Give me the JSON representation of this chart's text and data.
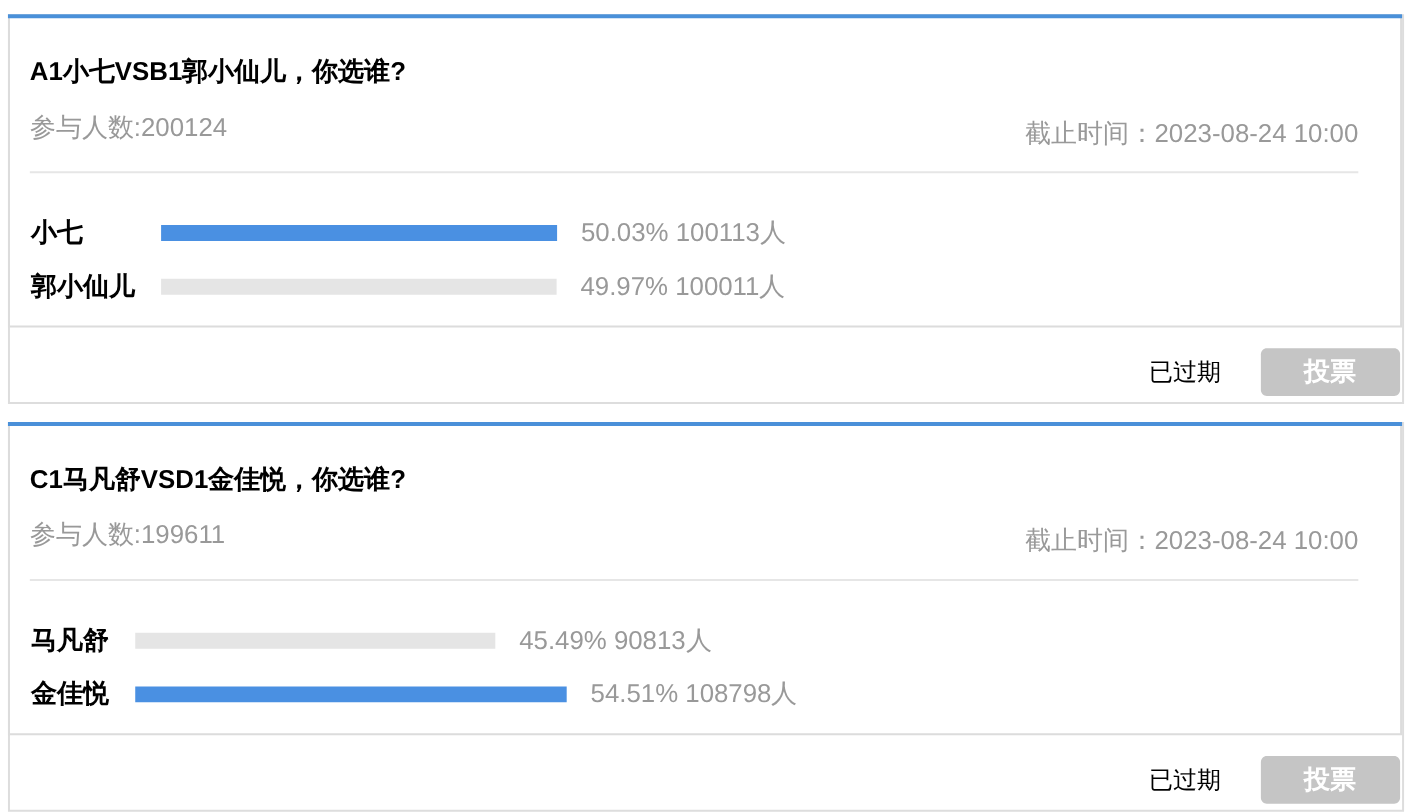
{
  "chart_data": [
    {
      "type": "bar",
      "orientation": "horizontal",
      "title": "A1小七VSB1郭小仙儿，你选谁?",
      "subtitle": "参与人数:200124",
      "categories": [
        "小七",
        "郭小仙儿"
      ],
      "values": [
        50.03,
        49.97
      ],
      "colors": [
        "#4a90e2",
        "#e5e5e5"
      ],
      "value_labels": [
        "50.03% 100113人",
        "49.97% 100011人"
      ],
      "tick_labels": "y",
      "annotations": [
        "截止时间：2023-08-24 10:00",
        "已过期",
        "投票"
      ]
    },
    {
      "type": "bar",
      "orientation": "horizontal",
      "title": "C1马凡舒VSD1金佳悦，你选谁?",
      "subtitle": "参与人数:199611",
      "categories": [
        "马凡舒",
        "金佳悦"
      ],
      "values": [
        45.49,
        54.51
      ],
      "colors": [
        "#e5e5e5",
        "#4a90e2"
      ],
      "value_labels": [
        "45.49% 90813人",
        "54.51% 108798人"
      ],
      "tick_labels": "y",
      "annotations": [
        "截止时间：2023-08-24 10:00",
        "已过期",
        "投票"
      ]
    }
  ]
}
